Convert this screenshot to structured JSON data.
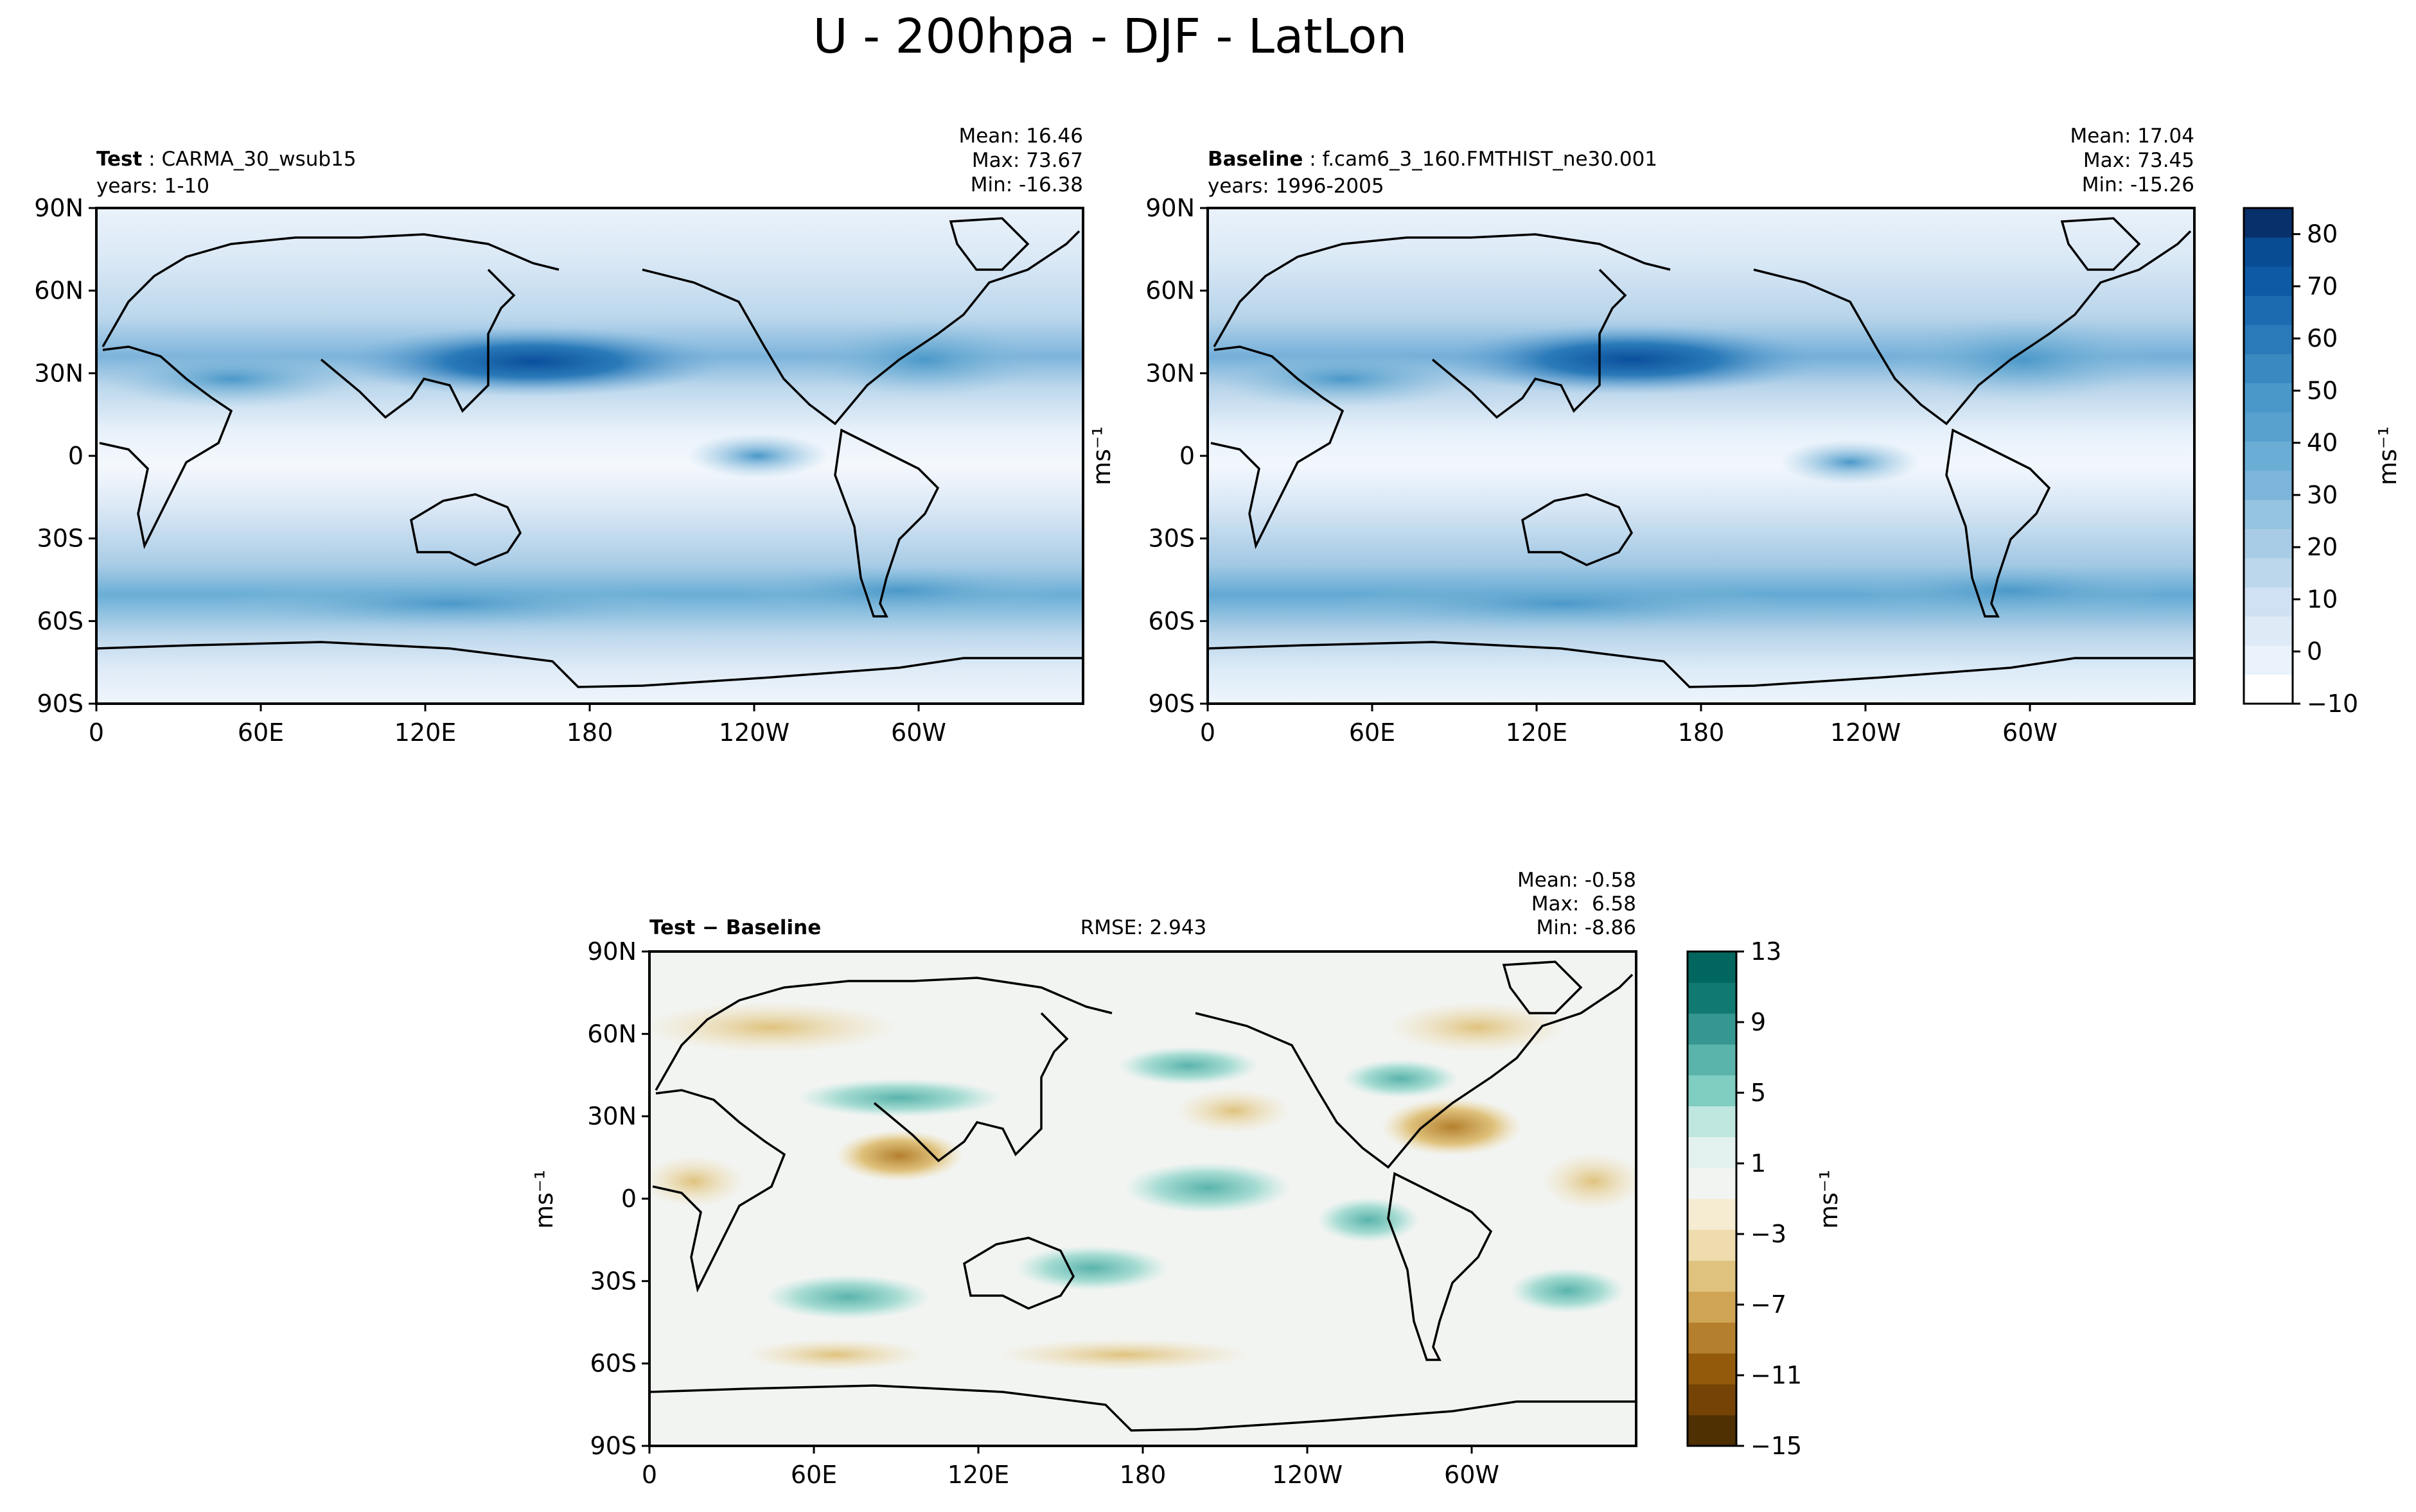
{
  "figure": {
    "title": "U - 200hpa - DJF - LatLon"
  },
  "colors": {
    "test_baseline_cmap": [
      "#ffffff",
      "#eaf2fb",
      "#deebf7",
      "#cfe1f2",
      "#bcd7ec",
      "#a9cce6",
      "#94c4df",
      "#7db4db",
      "#6aaed6",
      "#58a1cf",
      "#4a98c9",
      "#3a89c0",
      "#2a7ab9",
      "#1c6bb0",
      "#0f5aa4",
      "#084c94",
      "#08306b"
    ],
    "diff_cmap": [
      "#4f3002",
      "#744305",
      "#935a0c",
      "#b4802e",
      "#cfa455",
      "#dfc27d",
      "#eedcae",
      "#f6ecd2",
      "#f2f4f2",
      "#e4f2ef",
      "#bfe6df",
      "#80cdc1",
      "#5ab4ac",
      "#35978f",
      "#117a70",
      "#01665e"
    ],
    "coastline": "#000000"
  },
  "chart_data": [
    {
      "type": "heatmap",
      "label_bold": "Test",
      "label_name": "CARMA_30_wsub15",
      "years": "years: 1-10",
      "stats": [
        "Mean: 16.46",
        "Max: 73.67",
        "Min: -16.38"
      ],
      "xticks": [
        "0",
        "60E",
        "120E",
        "180",
        "120W",
        "60W"
      ],
      "yticks": [
        "90N",
        "60N",
        "30N",
        "0",
        "30S",
        "60S",
        "90S"
      ],
      "xlim": [
        0,
        360
      ],
      "ylim": [
        -90,
        90
      ],
      "zonal_mean_profile": {
        "lat": [
          -90,
          -75,
          -60,
          -45,
          -30,
          -15,
          0,
          15,
          30,
          45,
          60,
          75,
          90
        ],
        "u": [
          2,
          10,
          24,
          28,
          18,
          6,
          0,
          8,
          38,
          22,
          14,
          8,
          3
        ]
      }
    },
    {
      "type": "heatmap",
      "label_bold": "Baseline",
      "label_name": "f.cam6_3_160.FMTHIST_ne30.001",
      "years": "years: 1996-2005",
      "stats": [
        "Mean: 17.04",
        "Max: 73.45",
        "Min: -15.26"
      ],
      "xticks": [
        "0",
        "60E",
        "120E",
        "180",
        "120W",
        "60W"
      ],
      "yticks": [
        "90N",
        "60N",
        "30N",
        "0",
        "30S",
        "60S",
        "90S"
      ],
      "xlim": [
        0,
        360
      ],
      "ylim": [
        -90,
        90
      ],
      "zonal_mean_profile": {
        "lat": [
          -90,
          -75,
          -60,
          -45,
          -30,
          -15,
          0,
          15,
          30,
          45,
          60,
          75,
          90
        ],
        "u": [
          2,
          10,
          25,
          29,
          19,
          6,
          0,
          8,
          39,
          23,
          14,
          8,
          3
        ]
      }
    },
    {
      "type": "heatmap",
      "label_bold": "Test − Baseline",
      "rmse": "RMSE: 2.943",
      "stats": [
        "Mean: -0.58",
        "Max:  6.58",
        "Min: -8.86"
      ],
      "xticks": [
        "0",
        "60E",
        "120E",
        "180",
        "120W",
        "60W"
      ],
      "yticks": [
        "90N",
        "60N",
        "30N",
        "0",
        "30S",
        "60S",
        "90S"
      ],
      "xlim": [
        0,
        360
      ],
      "ylim": [
        -90,
        90
      ]
    }
  ],
  "colorbars": {
    "top": {
      "ticks": [
        "−10",
        "0",
        "10",
        "20",
        "30",
        "40",
        "50",
        "60",
        "70",
        "80"
      ],
      "unit": "ms⁻¹",
      "range": [
        -10,
        85
      ]
    },
    "diff": {
      "ticks": [
        "−15",
        "−11",
        "−7",
        "−3",
        "1",
        "5",
        "9",
        "13"
      ],
      "unit": "ms⁻¹",
      "range": [
        -15,
        13
      ]
    }
  },
  "axis_unit_label": "ms⁻¹"
}
